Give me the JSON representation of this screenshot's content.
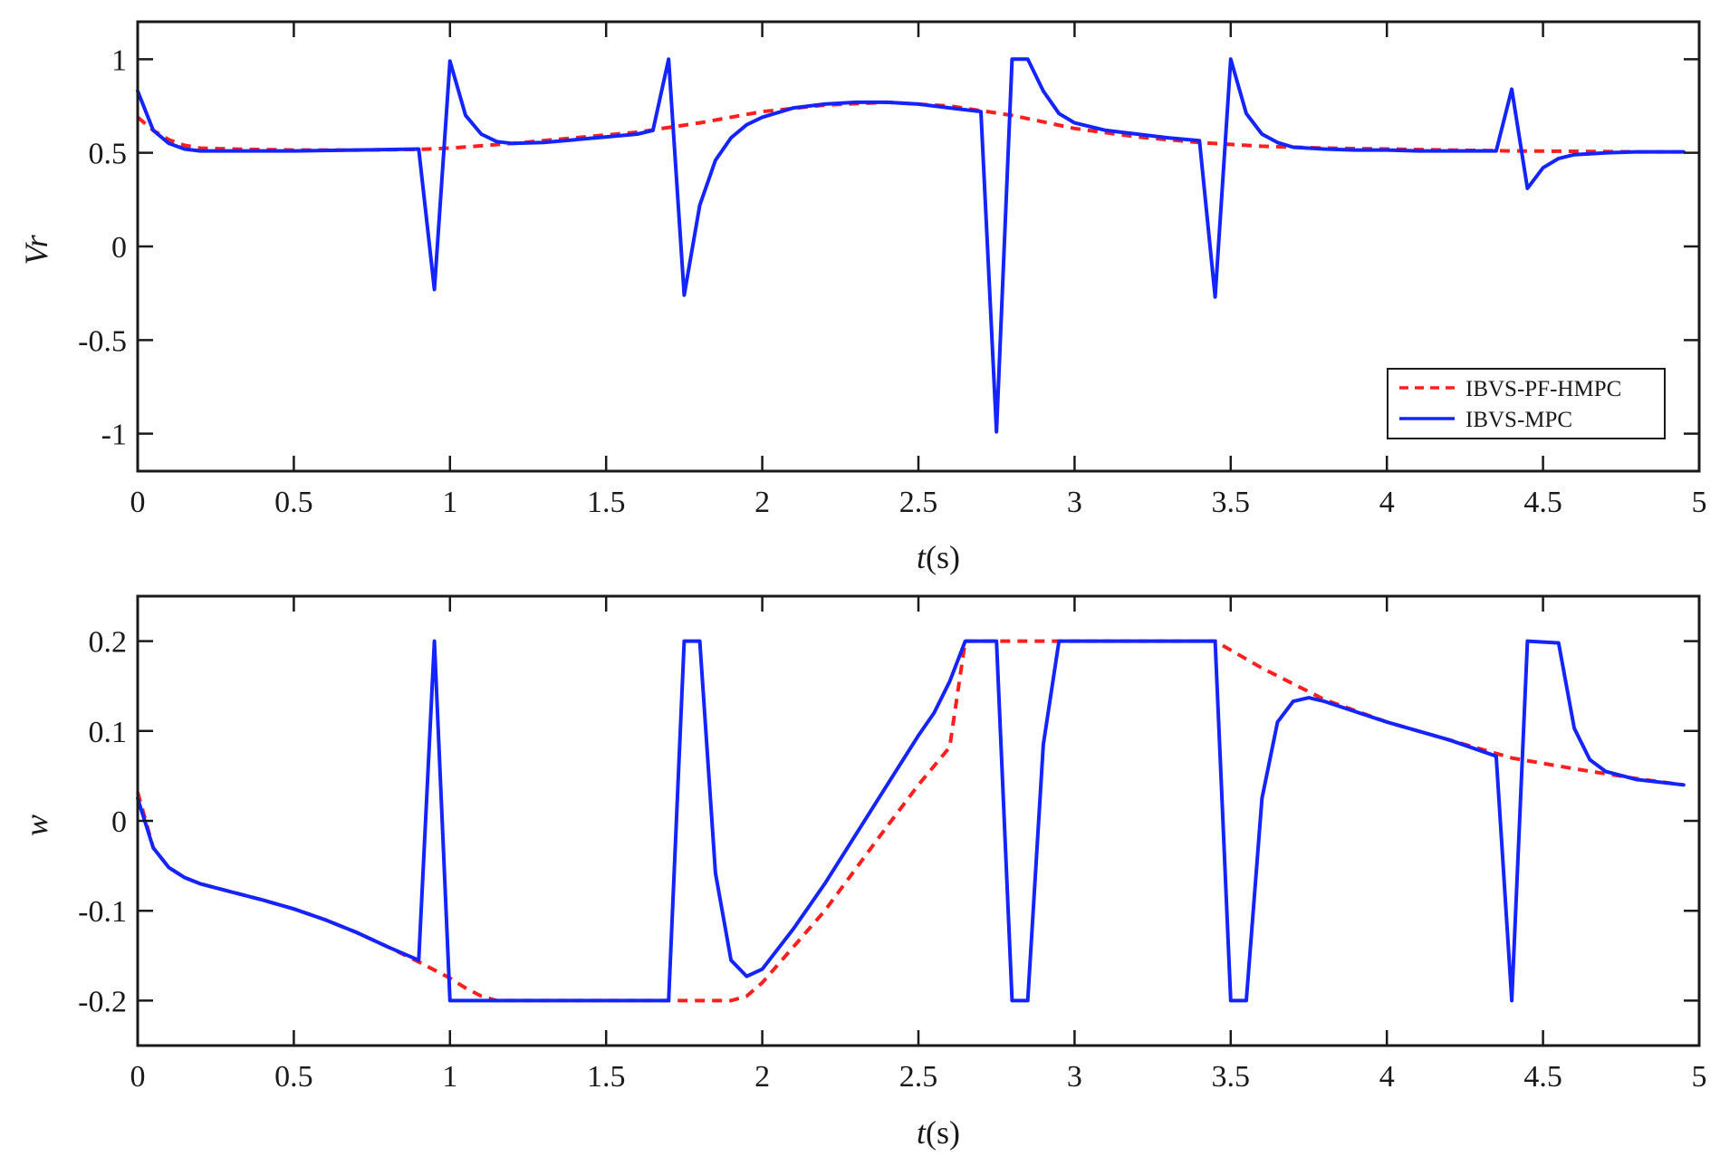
{
  "chart_data": [
    {
      "type": "line",
      "xlabel": {
        "italic": "t",
        "rest": "(s)"
      },
      "ylabel": "Vr",
      "xlim": [
        0,
        5
      ],
      "ylim": [
        -1.2,
        1.2
      ],
      "xticks": [
        0,
        0.5,
        1,
        1.5,
        2,
        2.5,
        3,
        3.5,
        4,
        4.5,
        5
      ],
      "xtick_labels": [
        "0",
        "0.5",
        "1",
        "1.5",
        "2",
        "2.5",
        "3",
        "3.5",
        "4",
        "4.5",
        "5"
      ],
      "yticks": [
        -1,
        -0.5,
        0,
        0.5,
        1
      ],
      "ytick_labels": [
        "-1",
        "-0.5",
        "0",
        "0.5",
        "1"
      ],
      "grid": false,
      "legend": {
        "position": "bottom-right",
        "entries": [
          "IBVS-PF-HMPC",
          "IBVS-MPC"
        ]
      },
      "series": [
        {
          "name": "IBVS-PF-HMPC",
          "color": "#ff1f1f",
          "style": "dashed",
          "x": [
            0,
            0.05,
            0.1,
            0.15,
            0.2,
            0.3,
            0.5,
            0.7,
            0.9,
            1.0,
            1.2,
            1.4,
            1.6,
            1.8,
            2.0,
            2.2,
            2.4,
            2.6,
            2.8,
            3.0,
            3.2,
            3.4,
            3.6,
            3.8,
            4.0,
            4.2,
            4.4,
            4.6,
            4.8,
            4.95
          ],
          "y": [
            0.69,
            0.62,
            0.57,
            0.54,
            0.525,
            0.52,
            0.515,
            0.515,
            0.518,
            0.525,
            0.55,
            0.58,
            0.61,
            0.66,
            0.72,
            0.755,
            0.77,
            0.75,
            0.7,
            0.63,
            0.585,
            0.555,
            0.535,
            0.525,
            0.52,
            0.515,
            0.51,
            0.508,
            0.505,
            0.505
          ]
        },
        {
          "name": "IBVS-MPC",
          "color": "#1424ff",
          "style": "solid",
          "x": [
            0,
            0.05,
            0.1,
            0.15,
            0.2,
            0.3,
            0.5,
            0.7,
            0.9,
            0.95,
            1.0,
            1.05,
            1.1,
            1.15,
            1.2,
            1.3,
            1.4,
            1.5,
            1.6,
            1.65,
            1.7,
            1.75,
            1.8,
            1.85,
            1.9,
            1.95,
            2.0,
            2.1,
            2.2,
            2.3,
            2.4,
            2.5,
            2.6,
            2.7,
            2.75,
            2.8,
            2.85,
            2.9,
            2.95,
            3.0,
            3.1,
            3.2,
            3.3,
            3.4,
            3.45,
            3.5,
            3.55,
            3.6,
            3.65,
            3.7,
            3.8,
            3.9,
            4.0,
            4.1,
            4.2,
            4.3,
            4.35,
            4.4,
            4.45,
            4.5,
            4.55,
            4.6,
            4.7,
            4.8,
            4.95
          ],
          "y": [
            0.83,
            0.62,
            0.55,
            0.52,
            0.51,
            0.51,
            0.51,
            0.515,
            0.52,
            -0.23,
            0.99,
            0.7,
            0.6,
            0.56,
            0.55,
            0.555,
            0.57,
            0.585,
            0.6,
            0.62,
            1.0,
            -0.26,
            0.22,
            0.46,
            0.58,
            0.65,
            0.69,
            0.74,
            0.76,
            0.77,
            0.77,
            0.76,
            0.74,
            0.72,
            -0.99,
            1.0,
            1.0,
            0.83,
            0.71,
            0.66,
            0.62,
            0.6,
            0.58,
            0.565,
            -0.27,
            1.0,
            0.71,
            0.6,
            0.555,
            0.53,
            0.52,
            0.515,
            0.515,
            0.51,
            0.51,
            0.51,
            0.51,
            0.84,
            0.31,
            0.42,
            0.47,
            0.49,
            0.5,
            0.505,
            0.505
          ]
        }
      ]
    },
    {
      "type": "line",
      "xlabel": {
        "italic": "t",
        "rest": "(s)"
      },
      "ylabel": "w",
      "xlim": [
        0,
        5
      ],
      "ylim": [
        -0.25,
        0.25
      ],
      "xticks": [
        0,
        0.5,
        1,
        1.5,
        2,
        2.5,
        3,
        3.5,
        4,
        4.5,
        5
      ],
      "xtick_labels": [
        "0",
        "0.5",
        "1",
        "1.5",
        "2",
        "2.5",
        "3",
        "3.5",
        "4",
        "4.5",
        "5"
      ],
      "yticks": [
        -0.2,
        -0.1,
        0,
        0.1,
        0.2
      ],
      "ytick_labels": [
        "-0.2",
        "-0.1",
        "0",
        "0.1",
        "0.2"
      ],
      "grid": false,
      "series": [
        {
          "name": "IBVS-PF-HMPC",
          "color": "#ff1f1f",
          "style": "dashed",
          "x": [
            0,
            0.05,
            0.1,
            0.15,
            0.2,
            0.3,
            0.4,
            0.5,
            0.6,
            0.7,
            0.8,
            0.9,
            1.0,
            1.05,
            1.1,
            1.15,
            1.3,
            1.5,
            1.7,
            1.8,
            1.9,
            1.95,
            2.0,
            2.1,
            2.2,
            2.3,
            2.4,
            2.5,
            2.6,
            2.65,
            2.8,
            3.0,
            3.2,
            3.45,
            3.6,
            3.8,
            4.0,
            4.2,
            4.4,
            4.6,
            4.8,
            4.95
          ],
          "y": [
            0.032,
            -0.03,
            -0.052,
            -0.063,
            -0.07,
            -0.079,
            -0.088,
            -0.098,
            -0.11,
            -0.124,
            -0.14,
            -0.157,
            -0.175,
            -0.186,
            -0.195,
            -0.2,
            -0.2,
            -0.2,
            -0.2,
            -0.2,
            -0.2,
            -0.195,
            -0.18,
            -0.14,
            -0.1,
            -0.053,
            -0.006,
            0.04,
            0.082,
            0.2,
            0.2,
            0.2,
            0.2,
            0.2,
            0.17,
            0.135,
            0.11,
            0.09,
            0.07,
            0.058,
            0.047,
            0.04
          ]
        },
        {
          "name": "IBVS-MPC",
          "color": "#1424ff",
          "style": "solid",
          "x": [
            0,
            0.05,
            0.1,
            0.15,
            0.2,
            0.3,
            0.4,
            0.5,
            0.6,
            0.7,
            0.8,
            0.9,
            0.95,
            1.0,
            1.1,
            1.3,
            1.5,
            1.7,
            1.75,
            1.8,
            1.85,
            1.9,
            1.95,
            2.0,
            2.1,
            2.2,
            2.3,
            2.4,
            2.5,
            2.55,
            2.6,
            2.65,
            2.75,
            2.8,
            2.85,
            2.9,
            2.95,
            3.1,
            3.3,
            3.45,
            3.5,
            3.55,
            3.6,
            3.65,
            3.7,
            3.75,
            3.8,
            4.0,
            4.2,
            4.35,
            4.4,
            4.45,
            4.55,
            4.6,
            4.65,
            4.7,
            4.8,
            4.95
          ],
          "y": [
            0.025,
            -0.03,
            -0.052,
            -0.063,
            -0.07,
            -0.079,
            -0.088,
            -0.098,
            -0.11,
            -0.124,
            -0.14,
            -0.155,
            0.2,
            -0.2,
            -0.2,
            -0.2,
            -0.2,
            -0.2,
            0.2,
            0.2,
            -0.058,
            -0.155,
            -0.173,
            -0.165,
            -0.12,
            -0.07,
            -0.015,
            0.04,
            0.095,
            0.12,
            0.155,
            0.2,
            0.2,
            -0.2,
            -0.2,
            0.085,
            0.2,
            0.2,
            0.2,
            0.2,
            -0.2,
            -0.2,
            0.025,
            0.11,
            0.133,
            0.137,
            0.133,
            0.11,
            0.09,
            0.072,
            -0.2,
            0.2,
            0.198,
            0.103,
            0.068,
            0.055,
            0.046,
            0.04
          ]
        }
      ]
    }
  ]
}
